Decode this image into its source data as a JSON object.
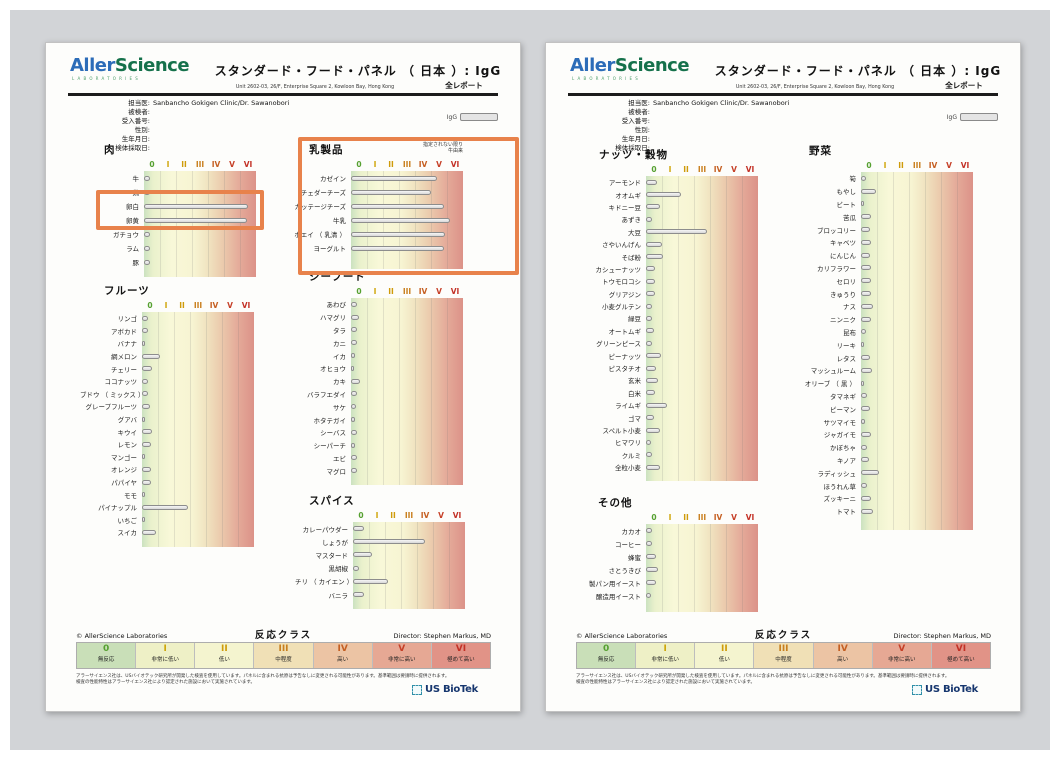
{
  "header": {
    "logo": {
      "part1": "Aller",
      "part2": "Science",
      "sub": "LABORATORIES"
    },
    "title": "スタンダード・フード・パネル （ 日本 ）: IgG",
    "address": "Unit 2602-03, 26/F, Enterprise Square 2, Kowloon Bay, Hong Kong",
    "report_type": "全レポート",
    "antibody_label": "IgG",
    "patient_fields": [
      {
        "label": "担当医:",
        "value": "Sanbancho Gokigen Clinic/Dr. Sawanobori"
      },
      {
        "label": "被検者:",
        "value": ""
      },
      {
        "label": "受入番号:",
        "value": ""
      },
      {
        "label": "性別:",
        "value": ""
      },
      {
        "label": "生年月日:",
        "value": ""
      },
      {
        "label": "検体採取日:",
        "value": ""
      }
    ]
  },
  "reaction_classes": [
    {
      "label": "0",
      "desc": "無反応",
      "color": "#55a02f",
      "bg": "#c9dfb8"
    },
    {
      "label": "I",
      "desc": "非常に低い",
      "color": "#cfa60a",
      "bg": "#eef0c6"
    },
    {
      "label": "II",
      "desc": "低い",
      "color": "#cf9b0a",
      "bg": "#f4f4cf"
    },
    {
      "label": "III",
      "desc": "中程度",
      "color": "#c97f1e",
      "bg": "#f0e0b6"
    },
    {
      "label": "IV",
      "desc": "高い",
      "color": "#c55f22",
      "bg": "#ecc4a4"
    },
    {
      "label": "V",
      "desc": "非常に高い",
      "color": "#c64028",
      "bg": "#e6a894"
    },
    {
      "label": "VI",
      "desc": "極めて高い",
      "color": "#c33126",
      "bg": "#e19387"
    }
  ],
  "annotations": {
    "highlight_color": "#e8824b"
  },
  "sections": {
    "meat": {
      "title": "肉",
      "items": [
        {
          "label": "牛",
          "value": 0.4
        },
        {
          "label": "鶏",
          "value": 0.4
        },
        {
          "label": "卵白",
          "value": 6.5
        },
        {
          "label": "卵黄",
          "value": 6.45
        },
        {
          "label": "ガチョウ",
          "value": 0.35
        },
        {
          "label": "ラム",
          "value": 0.4
        },
        {
          "label": "豚",
          "value": 0.35
        }
      ]
    },
    "dairy": {
      "title": "乳製品",
      "note_1": "指定されない限り",
      "note_2": "牛由来",
      "items": [
        {
          "label": "カゼイン",
          "value": 5.4
        },
        {
          "label": "チェダーチーズ",
          "value": 5.0
        },
        {
          "label": "カッテージチーズ",
          "value": 5.8
        },
        {
          "label": "牛乳",
          "value": 6.2
        },
        {
          "label": "ホエイ （ 乳清 ）",
          "value": 5.9
        },
        {
          "label": "ヨーグルト",
          "value": 5.8
        }
      ]
    },
    "fruits": {
      "title": "フルーツ",
      "items": [
        {
          "label": "リンゴ",
          "value": 0.4
        },
        {
          "label": "アボカド",
          "value": 0.4
        },
        {
          "label": "バナナ",
          "value": 0.2
        },
        {
          "label": "網メロン",
          "value": 1.15
        },
        {
          "label": "チェリー",
          "value": 0.6
        },
        {
          "label": "ココナッツ",
          "value": 0.35
        },
        {
          "label": "ブドウ （ ミックス ）",
          "value": 0.4
        },
        {
          "label": "グレープフルーツ",
          "value": 0.5
        },
        {
          "label": "グアバ",
          "value": 0.2
        },
        {
          "label": "キウイ",
          "value": 0.6
        },
        {
          "label": "レモン",
          "value": 0.55
        },
        {
          "label": "マンゴー",
          "value": 0.2
        },
        {
          "label": "オレンジ",
          "value": 0.55
        },
        {
          "label": "パパイヤ",
          "value": 0.55
        },
        {
          "label": "モモ",
          "value": 0.2
        },
        {
          "label": "パイナップル",
          "value": 2.85
        },
        {
          "label": "いちご",
          "value": 0.2
        },
        {
          "label": "スイカ",
          "value": 0.85
        }
      ]
    },
    "seafood": {
      "title": "シーフード",
      "items": [
        {
          "label": "あわび",
          "value": 0.35
        },
        {
          "label": "ハマグリ",
          "value": 0.5
        },
        {
          "label": "タラ",
          "value": 0.35
        },
        {
          "label": "カニ",
          "value": 0.4
        },
        {
          "label": "イカ",
          "value": 0.25
        },
        {
          "label": "オヒョウ",
          "value": 0.2
        },
        {
          "label": "カキ",
          "value": 0.55
        },
        {
          "label": "バラフエダイ",
          "value": 0.35
        },
        {
          "label": "サケ",
          "value": 0.3
        },
        {
          "label": "ホタテガイ",
          "value": 0.25
        },
        {
          "label": "シーバス",
          "value": 0.35
        },
        {
          "label": "シーパーチ",
          "value": 0.25
        },
        {
          "label": "エビ",
          "value": 0.35
        },
        {
          "label": "マグロ",
          "value": 0.4
        }
      ]
    },
    "spices": {
      "title": "スパイス",
      "items": [
        {
          "label": "カレーパウダー",
          "value": 0.7
        },
        {
          "label": "しょうが",
          "value": 4.5
        },
        {
          "label": "マスタード",
          "value": 1.2
        },
        {
          "label": "黒胡椒",
          "value": 0.4
        },
        {
          "label": "チリ （ カイエン ）",
          "value": 2.2
        },
        {
          "label": "バニラ",
          "value": 0.7
        }
      ]
    },
    "nuts_grains": {
      "title": "ナッツ・穀物",
      "items": [
        {
          "label": "アーモンド",
          "value": 0.7
        },
        {
          "label": "オオムギ",
          "value": 2.2
        },
        {
          "label": "キドニー豆",
          "value": 0.9
        },
        {
          "label": "あずき",
          "value": 0.35
        },
        {
          "label": "大豆",
          "value": 3.8
        },
        {
          "label": "さやいんげん",
          "value": 1.0
        },
        {
          "label": "そば粉",
          "value": 1.05
        },
        {
          "label": "カシューナッツ",
          "value": 0.55
        },
        {
          "label": "トウモロコシ",
          "value": 0.55
        },
        {
          "label": "グリアジン",
          "value": 0.55
        },
        {
          "label": "小麦グルテン",
          "value": 0.4
        },
        {
          "label": "緑豆",
          "value": 0.35
        },
        {
          "label": "オートムギ",
          "value": 0.5
        },
        {
          "label": "グリーンピース",
          "value": 0.35
        },
        {
          "label": "ピーナッツ",
          "value": 0.95
        },
        {
          "label": "ピスタチオ",
          "value": 0.6
        },
        {
          "label": "玄米",
          "value": 0.75
        },
        {
          "label": "白米",
          "value": 0.55
        },
        {
          "label": "ライムギ",
          "value": 1.3
        },
        {
          "label": "ゴマ",
          "value": 0.5
        },
        {
          "label": "スペルト小麦",
          "value": 0.85
        },
        {
          "label": "ヒマワリ",
          "value": 0.3
        },
        {
          "label": "クルミ",
          "value": 0.4
        },
        {
          "label": "全粒小麦",
          "value": 0.85
        }
      ]
    },
    "vegetables": {
      "title": "野菜",
      "items": [
        {
          "label": "筍",
          "value": 0.3
        },
        {
          "label": "もやし",
          "value": 0.95
        },
        {
          "label": "ビート",
          "value": 0.2
        },
        {
          "label": "苦瓜",
          "value": 0.6
        },
        {
          "label": "ブロッコリー",
          "value": 0.55
        },
        {
          "label": "キャベツ",
          "value": 0.6
        },
        {
          "label": "にんじん",
          "value": 0.55
        },
        {
          "label": "カリフラワー",
          "value": 0.6
        },
        {
          "label": "セロリ",
          "value": 0.65
        },
        {
          "label": "きゅうり",
          "value": 0.6
        },
        {
          "label": "ナス",
          "value": 0.75
        },
        {
          "label": "ニンニク",
          "value": 0.6
        },
        {
          "label": "昆布",
          "value": 0.3
        },
        {
          "label": "リーキ",
          "value": 0.2
        },
        {
          "label": "レタス",
          "value": 0.55
        },
        {
          "label": "マッシュルーム",
          "value": 0.7
        },
        {
          "label": "オリーブ （ 黒 ）",
          "value": 0.2
        },
        {
          "label": "タマネギ",
          "value": 0.4
        },
        {
          "label": "ピーマン",
          "value": 0.55
        },
        {
          "label": "サツマイモ",
          "value": 0.25
        },
        {
          "label": "ジャガイモ",
          "value": 0.6
        },
        {
          "label": "かぼちゃ",
          "value": 0.4
        },
        {
          "label": "キノア",
          "value": 0.5
        },
        {
          "label": "ラディッシュ",
          "value": 1.15
        },
        {
          "label": "ほうれん草",
          "value": 0.35
        },
        {
          "label": "ズッキーニ",
          "value": 0.65
        },
        {
          "label": "トマト",
          "value": 0.75
        }
      ]
    },
    "others": {
      "title": "その他",
      "items": [
        {
          "label": "カカオ",
          "value": 0.4
        },
        {
          "label": "コーヒー",
          "value": 0.4
        },
        {
          "label": "蜂蜜",
          "value": 0.65
        },
        {
          "label": "さとうきび",
          "value": 0.75
        },
        {
          "label": "製パン用イースト",
          "value": 0.65
        },
        {
          "label": "醸造用イースト",
          "value": 0.3
        }
      ]
    }
  },
  "footer": {
    "copyright": "© AllerScience Laboratories",
    "legend_title": "反応クラス",
    "director": "Director: Stephen Markus, MD",
    "fine_print_1": "アラーサイエンス社は、USバイオテック研究所が開発した検査を使用しています。パネルに含まれる抗原は予告なしに変更される可能性があります。基準範囲は要請時に提供されます。",
    "fine_print_2": "検査の性能特性はアラーサイエンス社により認定された施設において実施されています。",
    "brand": "US BioTek"
  }
}
